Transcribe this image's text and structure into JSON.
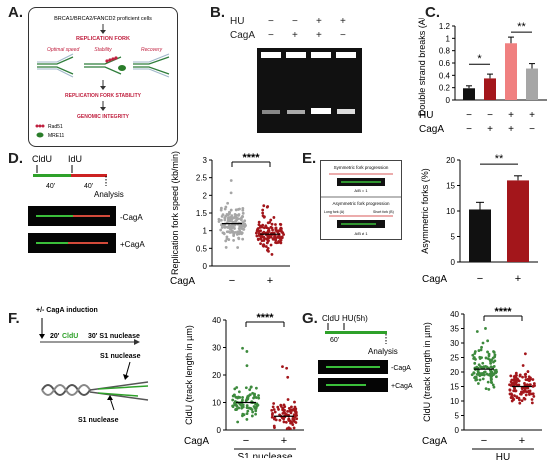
{
  "panels": {
    "a": {
      "letter": "A.",
      "header": "BRCA1/BRCA2/FANCD2 proficient cells",
      "stage_optimal": "Optimal speed",
      "stage_stability": "Stability",
      "stage_recovery": "Recovery",
      "replication_fork": "REPLICATION FORK",
      "fork_stability": "REPLICATION FORK STABILITY",
      "genomic_integrity": "GENOMIC INTEGRITY",
      "legend_rad51": "Rad51",
      "legend_mre11": "MRE11"
    },
    "b": {
      "letter": "B.",
      "row_hu_label": "HU",
      "row_hu_signs": [
        "−",
        "−",
        "+",
        "+"
      ],
      "row_caga_label": "CagA",
      "row_caga_signs": [
        "−",
        "+",
        "+",
        "−"
      ]
    },
    "c": {
      "letter": "C.",
      "hu_label": "HU",
      "caga_label": "CagA",
      "hu_signs": [
        "−",
        "−",
        "+",
        "+"
      ],
      "caga_signs": [
        "−",
        "+",
        "+",
        "−"
      ],
      "sig1": "*",
      "sig2": "**"
    },
    "d": {
      "letter": "D.",
      "cldu": "CldU",
      "idu": "IdU",
      "t1": "40'",
      "t2": "40'",
      "analysis": "Analysis",
      "img1_label": "-CagA",
      "img2_label": "+CagA",
      "caga_label": "CagA",
      "signs": [
        "−",
        "+"
      ],
      "sig": "****"
    },
    "e": {
      "letter": "E.",
      "sym_title": "Symmetric fork progression",
      "asym_title": "Asymmetric fork progression",
      "ratio1": "A/B = 1",
      "ratio2": "A/B ≠ 1",
      "long_fork": "Long fork (A)",
      "short_fork": "Short fork (B)",
      "caga_label": "CagA",
      "signs": [
        "−",
        "+"
      ],
      "sig": "**"
    },
    "f": {
      "letter": "F.",
      "induction": "+/- CagA induction",
      "step_cldu_time": "20'",
      "step_cldu": "CldU",
      "step_s1": "30' S1 nuclease",
      "s1_label1": "S1 nuclease",
      "s1_label2": "S1 nuclease",
      "caga_label": "CagA",
      "signs": [
        "−",
        "+"
      ],
      "bottom_label": "S1 nuclease",
      "sig": "****"
    },
    "g": {
      "letter": "G.",
      "cldu": "CldU",
      "hu": "HU(5h)",
      "t1": "60'",
      "analysis": "Analysis",
      "img1_label": "-CagA",
      "img2_label": "+CagA",
      "caga_label": "CagA",
      "signs": [
        "−",
        "+"
      ],
      "bottom_label": "HU",
      "sig": "****"
    }
  },
  "colors": {
    "green": "#2fa12a",
    "red": "#cc2222",
    "darkred": "#a3161b",
    "pink": "#f08080",
    "grey": "#a6a6a6",
    "black": "#111111"
  },
  "chart_data": [
    {
      "id": "C",
      "type": "bar",
      "ylabel": "Double strand breaks (AU)",
      "ylim": [
        0,
        1.2
      ],
      "yticks": [
        0.0,
        0.2,
        0.4,
        0.6,
        0.8,
        1.0,
        1.2
      ],
      "categories": [
        "HU− CagA−",
        "HU− CagA+",
        "HU+ CagA+",
        "HU+ CagA−"
      ],
      "values": [
        0.19,
        0.35,
        0.92,
        0.51
      ],
      "errors": [
        0.04,
        0.07,
        0.1,
        0.08
      ],
      "colors": [
        "#111111",
        "#a3161b",
        "#f08080",
        "#a6a6a6"
      ]
    },
    {
      "id": "D",
      "type": "scatter",
      "ylabel": "Replication fork speed (kb/min)",
      "ylim": [
        0,
        3.0
      ],
      "yticks": [
        0.0,
        0.5,
        1.0,
        1.5,
        2.0,
        2.5,
        3.0
      ],
      "categories": [
        "−",
        "+"
      ],
      "medians": [
        1.2,
        0.9
      ],
      "n_points": [
        140,
        140
      ],
      "spread": [
        [
          0.2,
          2.6
        ],
        [
          0.1,
          1.8
        ]
      ],
      "colors": [
        "#a6a6a6",
        "#a3161b"
      ]
    },
    {
      "id": "E",
      "type": "bar",
      "ylabel": "Asymmetric forks (%)",
      "ylim": [
        0,
        20
      ],
      "yticks": [
        0,
        5,
        10,
        15,
        20
      ],
      "categories": [
        "−",
        "+"
      ],
      "values": [
        10.3,
        16.0
      ],
      "errors": [
        1.4,
        0.9
      ],
      "colors": [
        "#111111",
        "#a3161b"
      ]
    },
    {
      "id": "F",
      "type": "scatter",
      "ylabel": "CldU (track length in µm)",
      "ylim": [
        0,
        40
      ],
      "yticks": [
        0,
        10,
        20,
        30,
        40
      ],
      "categories": [
        "−",
        "+"
      ],
      "medians": [
        10,
        5
      ],
      "n_points": [
        90,
        90
      ],
      "spread": [
        [
          1,
          33
        ],
        [
          0.5,
          26
        ]
      ],
      "colors": [
        "#3d8a3d",
        "#a3161b"
      ]
    },
    {
      "id": "G",
      "type": "scatter",
      "ylabel": "CldU (track length in µm)",
      "ylim": [
        0,
        40
      ],
      "yticks": [
        0,
        5,
        10,
        15,
        20,
        25,
        30,
        35,
        40
      ],
      "categories": [
        "−",
        "+"
      ],
      "medians": [
        21,
        15
      ],
      "n_points": [
        110,
        110
      ],
      "spread": [
        [
          6,
          37
        ],
        [
          5,
          30
        ]
      ],
      "colors": [
        "#3d8a3d",
        "#a3161b"
      ]
    }
  ]
}
